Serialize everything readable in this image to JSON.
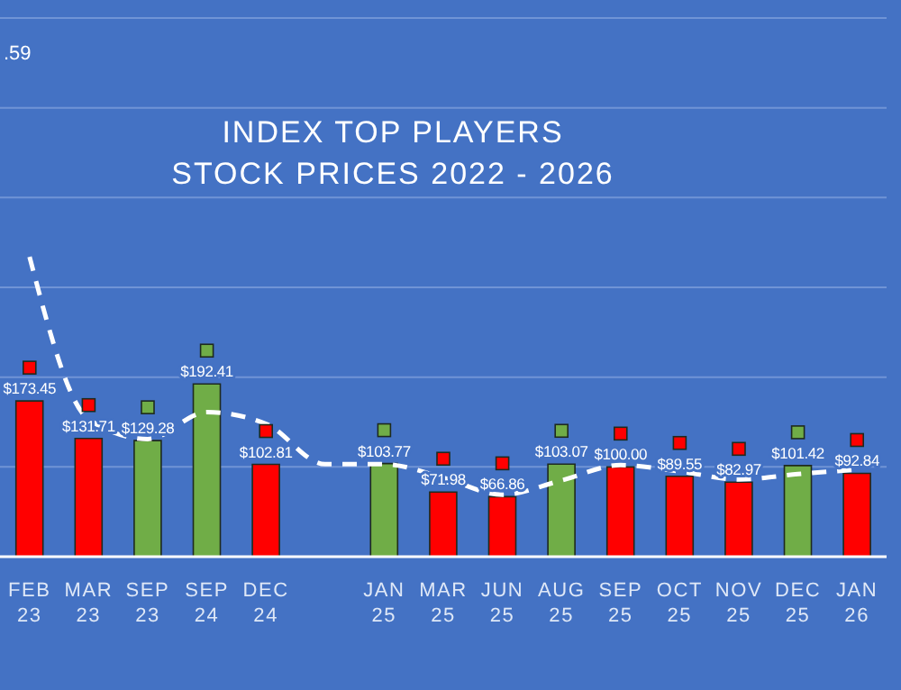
{
  "chart_data": {
    "type": "bar",
    "title": "INDEX TOP PLAYERS",
    "subtitle": "STOCK PRICES 2022 - 2026",
    "categories": [
      "FEB 23",
      "MAR 23",
      "SEP 23",
      "SEP 24",
      "DEC 24",
      null,
      "JAN 25",
      "MAR 25",
      "JUN 25",
      "AUG 25",
      "SEP 25",
      "OCT 25",
      "NOV 25",
      "DEC 25",
      "JAN 26"
    ],
    "series": [
      {
        "values": [
          173.45,
          131.71,
          129.28,
          192.41,
          102.81,
          null,
          103.77,
          71.98,
          66.86,
          103.07,
          100.0,
          89.55,
          82.97,
          101.42,
          92.84
        ],
        "colors": [
          "#ff0000",
          "#ff0000",
          "#70ad47",
          "#70ad47",
          "#ff0000",
          null,
          "#70ad47",
          "#ff0000",
          "#ff0000",
          "#70ad47",
          "#ff0000",
          "#ff0000",
          "#ff0000",
          "#70ad47",
          "#ff0000"
        ],
        "value_labels": [
          "$173.45",
          "$131.71",
          "$129.28",
          "$192.41",
          "$102.81",
          null,
          "$103.77",
          "$71.98",
          "$66.86",
          "$103.07",
          "$100.00",
          "$89.55",
          "$82.97",
          "$101.42",
          "$92.84"
        ]
      },
      {
        "type": "line",
        "color": "#ffffff",
        "line_style": "dashed",
        "values": [
          334,
          153,
          131,
          161,
          148,
          103,
          103,
          88,
          69,
          85,
          102,
          95,
          86,
          92,
          97
        ]
      }
    ],
    "ylim": [
      0,
      600
    ],
    "yticks": [
      {
        "value": 0,
        "label": null
      },
      {
        "value": 100,
        "label": null
      },
      {
        "value": 200,
        "label": null
      },
      {
        "value": 300,
        "label": null
      },
      {
        "value": 400,
        "label": null
      },
      {
        "value": 500,
        "label": null
      },
      {
        "value": 600,
        "label": null
      }
    ],
    "tick_labels": "x",
    "grid": "y",
    "annotations": [
      ".59"
    ]
  }
}
